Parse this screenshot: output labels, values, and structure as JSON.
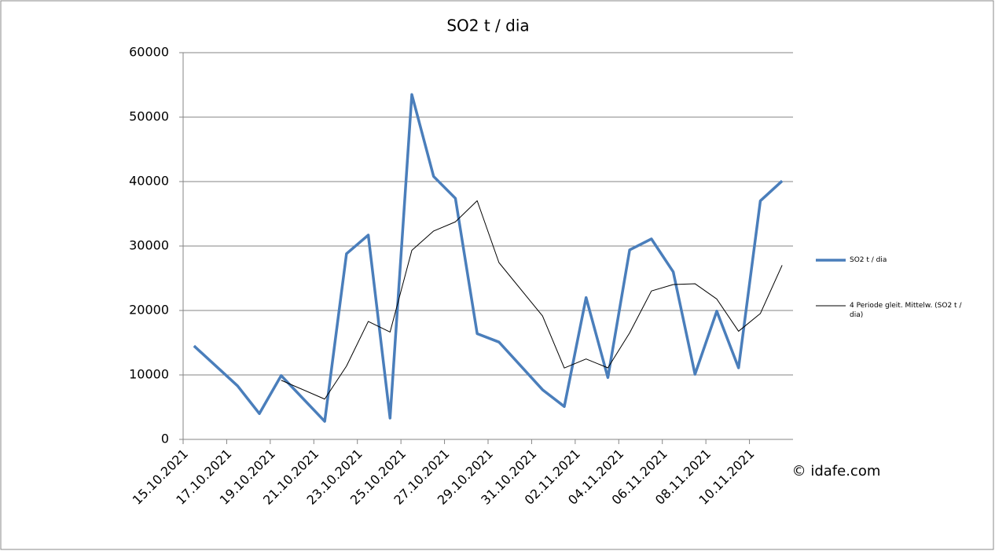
{
  "chart_data": {
    "type": "line",
    "title": "SO2 t / dia",
    "x": [
      "15.10.2021",
      "17.10.2021",
      "18.10.2021",
      "19.10.2021",
      "21.10.2021",
      "22.10.2021",
      "23.10.2021",
      "24.10.2021",
      "25.10.2021",
      "26.10.2021",
      "27.10.2021",
      "28.10.2021",
      "29.10.2021",
      "31.10.2021",
      "01.11.2021",
      "02.11.2021",
      "03.11.2021",
      "04.11.2021",
      "05.11.2021",
      "06.11.2021",
      "07.11.2021",
      "08.11.2021",
      "09.11.2021",
      "10.11.2021",
      "11.11.2021"
    ],
    "series": [
      {
        "name": "SO2 t / dia",
        "color": "#4a7ebb",
        "width": 3.5,
        "values": [
          14500,
          8300,
          4000,
          9900,
          2800,
          28800,
          31700,
          3300,
          53500,
          40800,
          37400,
          16400,
          15100,
          7700,
          5100,
          22000,
          9600,
          29400,
          31100,
          26000,
          10100,
          19900,
          11100,
          37000,
          40100
        ]
      },
      {
        "name": "4 Periode gleit. Mittelw. (SO2 t / dia)",
        "color": "#000000",
        "width": 1,
        "values": [
          null,
          null,
          null,
          9175,
          6250,
          11375,
          18300,
          16650,
          29325,
          32325,
          33750,
          37025,
          27425,
          19150,
          11075,
          12475,
          11100,
          16525,
          23025,
          24025,
          24150,
          21775,
          16775,
          19525,
          27025
        ]
      }
    ],
    "xlim": [
      "15.10.2021",
      "11.11.2021"
    ],
    "xticks": [
      "15.10.2021",
      "17.10.2021",
      "19.10.2021",
      "21.10.2021",
      "23.10.2021",
      "25.10.2021",
      "27.10.2021",
      "29.10.2021",
      "31.10.2021",
      "02.11.2021",
      "04.11.2021",
      "06.11.2021",
      "08.11.2021",
      "10.11.2021"
    ],
    "ylim": [
      0,
      60000
    ],
    "yticks": [
      0,
      10000,
      20000,
      30000,
      40000,
      50000,
      60000
    ],
    "grid": true,
    "legend": "right",
    "watermark": "© idafe.com"
  }
}
